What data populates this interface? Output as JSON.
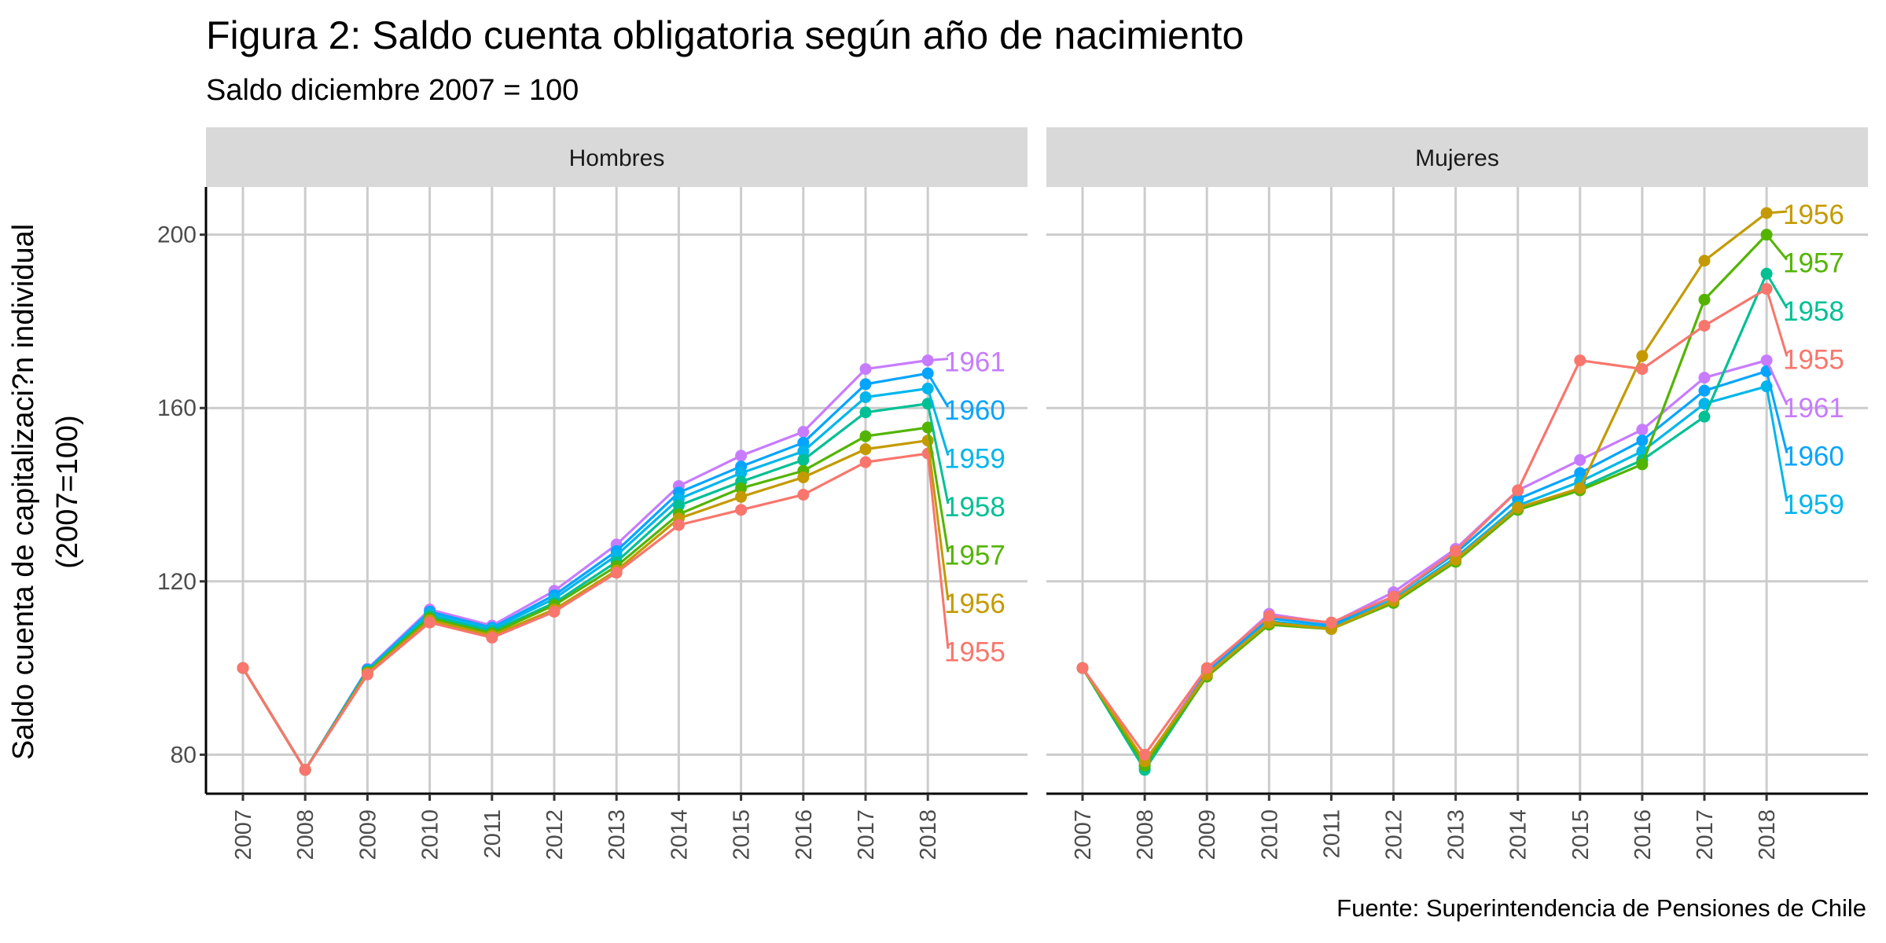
{
  "chart_data": {
    "type": "line",
    "title": "Figura 2: Saldo cuenta obligatoria según año de nacimiento",
    "subtitle": "Saldo diciembre 2007 = 100",
    "ylabel_line1": "Saldo cuenta de capitalizaci?n individual",
    "ylabel_line2": "(2007=100)",
    "xlabel": "",
    "caption": "Fuente: Superintendencia de Pensiones de Chile",
    "ylim": [
      71,
      211
    ],
    "yticks": [
      80,
      120,
      160,
      200
    ],
    "x": [
      "2007",
      "2008",
      "2009",
      "2010",
      "2011",
      "2012",
      "2013",
      "2014",
      "2015",
      "2016",
      "2017",
      "2018"
    ],
    "grid": true,
    "legend": "none",
    "facets": [
      {
        "label": "Hombres",
        "series": [
          {
            "name": "1955",
            "color": "#F8766D",
            "values": [
              100,
              76.5,
              98.5,
              110.5,
              107,
              113,
              122,
              133,
              136.5,
              140,
              147.5,
              149.5
            ]
          },
          {
            "name": "1956",
            "color": "#C49A00",
            "values": [
              100,
              76.5,
              98.8,
              111,
              107.5,
              113.5,
              122.5,
              134.5,
              139.5,
              144,
              150.5,
              152.5
            ]
          },
          {
            "name": "1957",
            "color": "#53B400",
            "values": [
              100,
              76.5,
              99,
              111.5,
              108,
              114.5,
              123.5,
              135.5,
              141.5,
              145.5,
              153.5,
              155.5
            ]
          },
          {
            "name": "1958",
            "color": "#00C094",
            "values": [
              100,
              76.5,
              99.2,
              112,
              108.5,
              115,
              124.5,
              137.5,
              143,
              148,
              159,
              161
            ]
          },
          {
            "name": "1959",
            "color": "#00B6EB",
            "values": [
              100,
              76.5,
              99.4,
              112.5,
              109,
              116,
              126,
              139,
              145,
              150,
              162.5,
              164.5
            ]
          },
          {
            "name": "1960",
            "color": "#06A4FF",
            "values": [
              100,
              76.5,
              99.6,
              113,
              109.3,
              116.8,
              127,
              140.5,
              146.5,
              152,
              165.5,
              168
            ]
          },
          {
            "name": "1961",
            "color": "#C77CFF",
            "values": [
              100,
              76.5,
              99.8,
              113.5,
              109.8,
              117.8,
              128.5,
              142,
              149,
              154.5,
              169,
              171
            ]
          }
        ]
      },
      {
        "label": "Mujeres",
        "series": [
          {
            "name": "1955",
            "color": "#F8766D",
            "values": [
              100,
              80,
              100,
              112,
              110.5,
              116.5,
              127,
              141,
              171,
              169,
              179,
              187.5
            ]
          },
          {
            "name": "1956",
            "color": "#C49A00",
            "values": [
              100,
              78.5,
              98.5,
              110.5,
              109,
              115.5,
              125,
              137,
              141.5,
              172,
              194,
              205
            ]
          },
          {
            "name": "1957",
            "color": "#53B400",
            "values": [
              100,
              77.5,
              98,
              110,
              109,
              115,
              124.5,
              136.5,
              141,
              147,
              185,
              200
            ]
          },
          {
            "name": "1958",
            "color": "#00C094",
            "values": [
              100,
              76.5,
              98.2,
              110.3,
              109,
              115.3,
              125,
              136.5,
              141.5,
              148,
              158,
              191
            ]
          },
          {
            "name": "1959",
            "color": "#00B6EB",
            "values": [
              100,
              77,
              98.5,
              110.8,
              109.3,
              115.8,
              125.5,
              137.5,
              143,
              150,
              161,
              165
            ]
          },
          {
            "name": "1960",
            "color": "#06A4FF",
            "values": [
              100,
              77.5,
              99,
              111.5,
              109.8,
              116.5,
              126.5,
              139,
              145,
              152.5,
              164,
              168.5
            ]
          },
          {
            "name": "1961",
            "color": "#C77CFF",
            "values": [
              100,
              78,
              99.5,
              112.5,
              110.3,
              117.5,
              127.5,
              141,
              148,
              155,
              167,
              171
            ]
          }
        ]
      }
    ]
  }
}
